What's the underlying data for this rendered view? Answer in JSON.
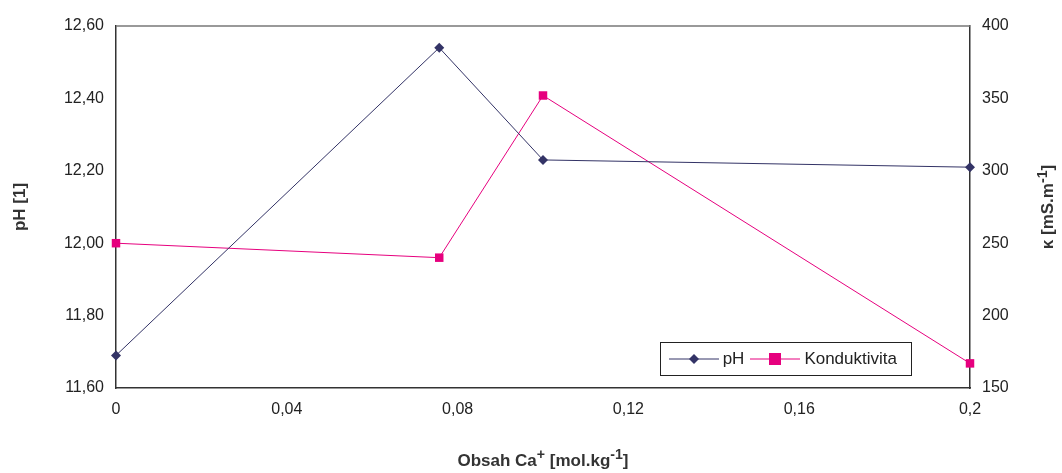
{
  "chart_data": {
    "type": "line",
    "xlabel": "Obsah Ca$^{+}$ [mol.kg$^{-1}$]",
    "ylabel": "pH [1]",
    "y2label": "κ [mS.m$^{-1}$]",
    "x": [
      0,
      0.0757,
      0.1,
      0.2
    ],
    "series": [
      {
        "name": "pH",
        "color": "#333366",
        "marker": "diamond",
        "values": [
          11.69,
          12.54,
          12.23,
          12.21
        ]
      },
      {
        "name": "Konduktivita",
        "color": "#e6007e",
        "marker": "square",
        "axis": "y2",
        "values": [
          250,
          240,
          352,
          167
        ]
      }
    ],
    "xlim": [
      0,
      0.2
    ],
    "xticks": [
      0,
      {
        "value": 0.04,
        "label": "0,04"
      },
      {
        "value": 0.08,
        "label": "0,08"
      },
      {
        "value": 0.12,
        "label": "0,12"
      },
      {
        "value": 0.16,
        "label": "0,16"
      },
      {
        "value": 0.2,
        "label": "0,2"
      }
    ],
    "ylim": [
      11.6,
      12.6
    ],
    "yticks": [
      {
        "value": 11.6,
        "label": "11,60"
      },
      {
        "value": 11.8,
        "label": "11,80"
      },
      {
        "value": 12.0,
        "label": "12,00"
      },
      {
        "value": 12.2,
        "label": "12,20"
      },
      {
        "value": 12.4,
        "label": "12,40"
      },
      {
        "value": 12.6,
        "label": "12,60"
      }
    ],
    "y2lim": [
      150,
      400
    ],
    "y2ticks": [
      150,
      200,
      250,
      300,
      350,
      400
    ],
    "grid": false,
    "legend": "bottom right",
    "line_style": "solid"
  }
}
